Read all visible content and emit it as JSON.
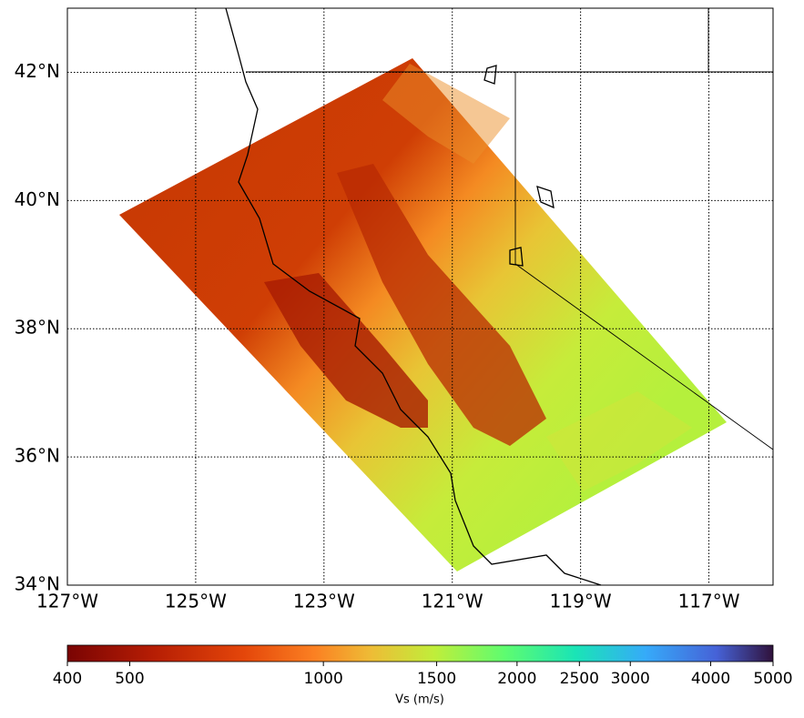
{
  "chart_data": {
    "type": "map",
    "xlim": [
      -127,
      -116
    ],
    "ylim": [
      34,
      43
    ],
    "xticks": [
      {
        "value": -127,
        "label": "127°W"
      },
      {
        "value": -125,
        "label": "125°W"
      },
      {
        "value": -123,
        "label": "123°W"
      },
      {
        "value": -121,
        "label": "121°W"
      },
      {
        "value": -119,
        "label": "119°W"
      },
      {
        "value": -117,
        "label": "117°W"
      }
    ],
    "yticks": [
      {
        "value": 34,
        "label": "34°N"
      },
      {
        "value": 36,
        "label": "36°N"
      },
      {
        "value": 38,
        "label": "38°N"
      },
      {
        "value": 40,
        "label": "40°N"
      },
      {
        "value": 42,
        "label": "42°N"
      }
    ],
    "grid": true,
    "colorbar": {
      "label": "Vs (m/s)",
      "scale": "log",
      "lim": [
        400,
        5000
      ],
      "ticks": [
        400,
        500,
        1000,
        1500,
        2000,
        2500,
        3000,
        4000,
        5000
      ]
    }
  }
}
